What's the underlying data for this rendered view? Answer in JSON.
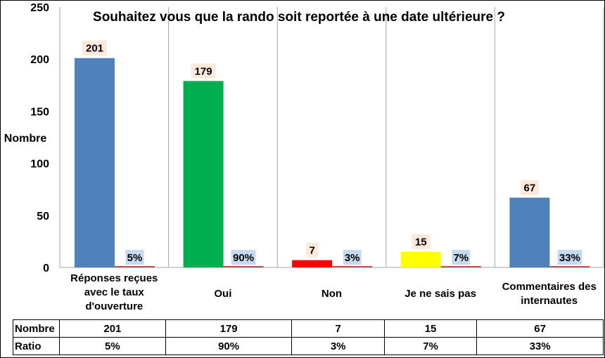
{
  "chart_data": {
    "type": "bar",
    "title": "Souhaitez vous que la rando soit reportée à une date ultérieure ?",
    "ylabel": "Nombre",
    "ylim": [
      0,
      250
    ],
    "yticks": [
      0,
      50,
      100,
      150,
      200,
      250
    ],
    "grid": "vertical-category-separators",
    "categories": [
      "Réponses reçues avec le taux d'ouverture",
      "Oui",
      "Non",
      "Je ne sais pas",
      "Commentaires des internautes"
    ],
    "category_lines": [
      [
        "Réponses reçues",
        "avec le taux",
        "d'ouverture"
      ],
      [
        "Oui"
      ],
      [
        "Non"
      ],
      [
        "Je ne sais pas"
      ],
      [
        "Commentaires des",
        "internautes"
      ]
    ],
    "series": [
      {
        "name": "Nombre",
        "values": [
          201,
          179,
          7,
          15,
          67
        ],
        "labels": [
          "201",
          "179",
          "7",
          "15",
          "67"
        ],
        "colors": [
          "#4F81BD",
          "#00B050",
          "#FF0000",
          "#FFFF00",
          "#4F81BD"
        ],
        "label_bg": "#FDE9D9"
      },
      {
        "name": "Ratio",
        "values": [
          5,
          90,
          3,
          7,
          33
        ],
        "labels": [
          "5%",
          "90%",
          "3%",
          "7%",
          "33%"
        ],
        "color": "#C0504D",
        "label_bg": "#C5D9F1"
      }
    ]
  },
  "table": {
    "rows": [
      {
        "name": "Nombre",
        "cells": [
          "201",
          "179",
          "7",
          "15",
          "67"
        ]
      },
      {
        "name": "Ratio",
        "cells": [
          "5%",
          "90%",
          "3%",
          "7%",
          "33%"
        ]
      }
    ]
  }
}
